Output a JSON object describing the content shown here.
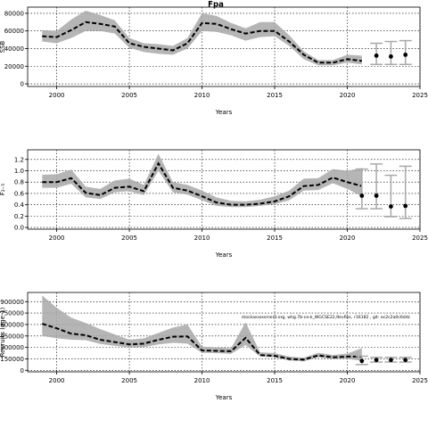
{
  "chart_data": [
    {
      "type": "line",
      "title": "Fpa",
      "xlabel": "Years",
      "ylabel": "SSB",
      "xlim": [
        1998,
        2025
      ],
      "ylim": [
        -3000,
        87000
      ],
      "xticks": [
        2000,
        2005,
        2010,
        2015,
        2020,
        2025
      ],
      "yticks": [
        0,
        20000,
        40000,
        60000,
        80000
      ],
      "ytick_labels": [
        "0",
        "20000",
        "40000",
        "60000",
        "80000"
      ],
      "grid": true,
      "series": [
        {
          "x": [
            1999,
            2000,
            2001,
            2002,
            2003,
            2004,
            2005,
            2006,
            2007,
            2008,
            2009,
            2010,
            2011,
            2012,
            2013,
            2014,
            2015,
            2016,
            2017,
            2018,
            2019,
            2020,
            2021
          ],
          "y": [
            54000,
            53000,
            61000,
            70000,
            68000,
            65000,
            46000,
            42000,
            40000,
            38000,
            46000,
            69000,
            68000,
            62000,
            57000,
            60000,
            60000,
            48000,
            33000,
            24000,
            24000,
            28000,
            26000
          ],
          "lower": [
            48000,
            46000,
            52000,
            60000,
            60000,
            57000,
            41000,
            36000,
            34000,
            33000,
            40000,
            60000,
            59000,
            55000,
            49000,
            53000,
            54000,
            43000,
            28000,
            21000,
            21000,
            24000,
            22000
          ],
          "upper": [
            61000,
            60000,
            73000,
            83000,
            78000,
            72000,
            52000,
            46000,
            45000,
            43000,
            52000,
            80000,
            77000,
            69000,
            63000,
            70000,
            70000,
            55000,
            37000,
            27000,
            27000,
            33000,
            32000
          ]
        }
      ],
      "projection": {
        "x": [
          2022,
          2023,
          2024
        ],
        "y": [
          32000,
          31000,
          33000
        ],
        "lower": [
          22000,
          22000,
          22000
        ],
        "upper": [
          46000,
          48000,
          49000
        ]
      }
    },
    {
      "type": "line",
      "title": "",
      "xlabel": "Years",
      "ylabel": "F₂₋₅",
      "xlim": [
        1998,
        2025
      ],
      "ylim": [
        -0.03,
        1.37
      ],
      "xticks": [
        2000,
        2005,
        2010,
        2015,
        2020,
        2025
      ],
      "yticks": [
        0,
        0.2,
        0.4,
        0.6,
        0.8,
        1.0,
        1.2
      ],
      "ytick_labels": [
        "0.0",
        "0.2",
        "0.4",
        "0.6",
        "0.8",
        "1.0",
        "1.2"
      ],
      "grid": true,
      "series": [
        {
          "x": [
            1999,
            2000,
            2001,
            2002,
            2003,
            2004,
            2005,
            2006,
            2007,
            2008,
            2009,
            2010,
            2011,
            2012,
            2013,
            2014,
            2015,
            2016,
            2017,
            2018,
            2019,
            2020,
            2021
          ],
          "y": [
            0.8,
            0.8,
            0.87,
            0.61,
            0.57,
            0.7,
            0.72,
            0.64,
            1.13,
            0.7,
            0.65,
            0.55,
            0.44,
            0.4,
            0.4,
            0.42,
            0.46,
            0.55,
            0.73,
            0.75,
            0.88,
            0.8,
            0.73
          ],
          "lower": [
            0.7,
            0.7,
            0.77,
            0.53,
            0.5,
            0.62,
            0.64,
            0.57,
            1.0,
            0.62,
            0.58,
            0.48,
            0.38,
            0.36,
            0.36,
            0.38,
            0.41,
            0.48,
            0.65,
            0.66,
            0.78,
            0.68,
            0.55
          ],
          "upper": [
            0.93,
            0.94,
            1.02,
            0.72,
            0.68,
            0.83,
            0.86,
            0.75,
            1.3,
            0.8,
            0.75,
            0.65,
            0.53,
            0.47,
            0.46,
            0.49,
            0.55,
            0.65,
            0.86,
            0.87,
            1.03,
            1.0,
            1.05
          ]
        }
      ],
      "projection": {
        "x": [
          2021,
          2022,
          2023,
          2024
        ],
        "y": [
          0.56,
          0.56,
          0.37,
          0.38
        ],
        "lower": [
          0.33,
          0.33,
          0.19,
          0.16
        ],
        "upper": [
          1.03,
          1.12,
          0.92,
          1.08
        ]
      }
    },
    {
      "type": "line",
      "title": "",
      "xlabel": "Years",
      "ylabel": "Recruits (age 1)",
      "xlim": [
        1998,
        2025
      ],
      "ylim": [
        -20000,
        1020000
      ],
      "xticks": [
        2000,
        2005,
        2010,
        2015,
        2020,
        2025
      ],
      "yticks": [
        0,
        150000,
        300000,
        450000,
        600000,
        750000,
        900000
      ],
      "ytick_labels": [
        "0",
        "150000",
        "300000",
        "450000",
        "600000",
        "750000",
        "900000"
      ],
      "grid": true,
      "annotation": "stockassessment.org, whg.7b-ce-k_WGCSE22,RevRec, r16182 , git: ec2c2a0c6ddc",
      "series": [
        {
          "x": [
            1999,
            2000,
            2001,
            2002,
            2003,
            2004,
            2005,
            2006,
            2007,
            2008,
            2009,
            2010,
            2011,
            2012,
            2013,
            2014,
            2015,
            2016,
            2017,
            2018,
            2019,
            2020,
            2021
          ],
          "y": [
            610000,
            550000,
            480000,
            460000,
            400000,
            370000,
            340000,
            350000,
            400000,
            440000,
            445000,
            260000,
            255000,
            250000,
            425000,
            200000,
            190000,
            150000,
            140000,
            195000,
            170000,
            180000,
            180000
          ],
          "lower": [
            450000,
            420000,
            400000,
            395000,
            345000,
            320000,
            300000,
            305000,
            340000,
            360000,
            350000,
            230000,
            225000,
            215000,
            330000,
            180000,
            168000,
            128000,
            118000,
            170000,
            150000,
            150000,
            125000
          ],
          "upper": [
            980000,
            820000,
            690000,
            620000,
            540000,
            470000,
            400000,
            420000,
            490000,
            560000,
            600000,
            310000,
            300000,
            290000,
            630000,
            235000,
            225000,
            180000,
            165000,
            230000,
            200000,
            220000,
            290000
          ]
        }
      ],
      "projection": {
        "x": [
          2021,
          2022,
          2023,
          2024
        ],
        "y": [
          123000,
          135000,
          135000,
          135000
        ],
        "lower": [
          75000,
          108000,
          108000,
          108000
        ],
        "upper": [
          185000,
          170000,
          170000,
          170000
        ]
      }
    }
  ]
}
